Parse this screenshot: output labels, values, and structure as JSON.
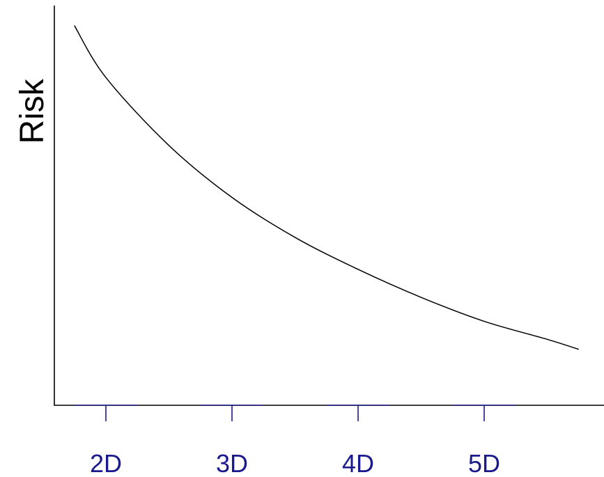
{
  "chart_data": {
    "type": "line",
    "title": "",
    "xlabel": "",
    "ylabel": "Risk",
    "categories": [
      "2D",
      "3D",
      "4D",
      "5D"
    ],
    "xlim": [
      1.75,
      5.75
    ],
    "ylim": [
      0,
      1
    ],
    "grid": false,
    "legend": "none",
    "series": [
      {
        "x": [
          1.75,
          2.0,
          2.5,
          3.0,
          3.5,
          4.0,
          4.5,
          5.0,
          5.5,
          5.75
        ],
        "y": [
          0.95,
          0.82,
          0.65,
          0.52,
          0.42,
          0.34,
          0.27,
          0.21,
          0.165,
          0.14
        ]
      }
    ],
    "colors": {
      "axis": "#000000",
      "ticks": "#1a1a8c",
      "curve": "#000000"
    }
  }
}
